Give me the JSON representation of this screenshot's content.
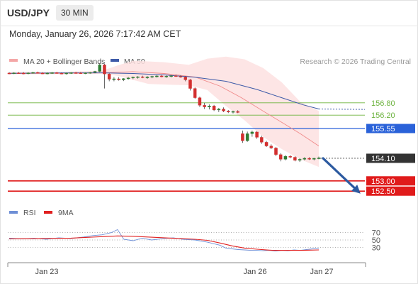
{
  "header": {
    "pair": "USD/JPY",
    "timeframe": "30 MIN",
    "datetime": "Monday, January 26, 2026 7:17:42 AM CET"
  },
  "legend": {
    "bb_label": "MA 20 + Bollinger Bands",
    "ma50_label": "MA 50",
    "credit": "Research © 2026 Trading Central"
  },
  "rsi_legend": {
    "rsi_label": "RSI",
    "ma_label": "9MA"
  },
  "colors": {
    "bb": "#f4a7a7",
    "ma50": "#3d5aa8",
    "rsi": "#6e8fd6",
    "rsi_ma": "#e02020",
    "bull": "#2e7d32",
    "bear": "#d32f2f",
    "support": "#e01b1b",
    "resistance": "#6db33f",
    "pivot": "#2a62d9",
    "current": "#333333",
    "arrow": "#2c5aa0"
  },
  "chart_data": [
    {
      "type": "candlestick",
      "title": "USD/JPY",
      "ylim": [
        152.3,
        158.35
      ],
      "x_ticks": [
        "Jan 23",
        "Jan 26",
        "Jan 27"
      ],
      "levels": [
        {
          "value": 156.8,
          "label": "156.80",
          "kind": "resistance"
        },
        {
          "value": 156.2,
          "label": "156.20",
          "kind": "resistance"
        },
        {
          "value": 155.55,
          "label": "155.55",
          "kind": "pivot"
        },
        {
          "value": 154.1,
          "label": "154.10",
          "kind": "current"
        },
        {
          "value": 153.0,
          "label": "153.00",
          "kind": "support"
        },
        {
          "value": 152.5,
          "label": "152.50",
          "kind": "support"
        }
      ],
      "projection": {
        "from": 154.1,
        "to": 152.5,
        "direction": "down"
      },
      "candles": [
        [
          158.25,
          158.29,
          158.2,
          158.24
        ],
        [
          158.24,
          158.29,
          158.2,
          158.26
        ],
        [
          158.26,
          158.3,
          158.21,
          158.25
        ],
        [
          158.25,
          158.3,
          158.19,
          158.23
        ],
        [
          158.23,
          158.29,
          158.19,
          158.26
        ],
        [
          158.26,
          158.31,
          158.22,
          158.28
        ],
        [
          158.28,
          158.32,
          158.23,
          158.25
        ],
        [
          158.25,
          158.29,
          158.2,
          158.23
        ],
        [
          158.23,
          158.28,
          158.19,
          158.25
        ],
        [
          158.25,
          158.3,
          158.21,
          158.27
        ],
        [
          158.27,
          158.31,
          158.22,
          158.24
        ],
        [
          158.24,
          158.28,
          158.19,
          158.22
        ],
        [
          158.22,
          158.27,
          158.18,
          158.25
        ],
        [
          158.25,
          158.29,
          158.21,
          158.27
        ],
        [
          158.27,
          158.31,
          158.22,
          158.26
        ],
        [
          158.26,
          158.3,
          158.21,
          158.24
        ],
        [
          158.24,
          158.28,
          158.2,
          158.26
        ],
        [
          158.26,
          158.3,
          158.22,
          158.28
        ],
        [
          158.28,
          158.36,
          158.24,
          158.33
        ],
        [
          158.33,
          158.72,
          158.3,
          158.65
        ],
        [
          158.65,
          158.7,
          157.5,
          158.2
        ],
        [
          158.2,
          158.24,
          157.85,
          157.95
        ],
        [
          157.95,
          158.05,
          157.85,
          157.97
        ],
        [
          157.97,
          158.05,
          157.88,
          157.92
        ],
        [
          157.92,
          158.0,
          157.86,
          157.98
        ],
        [
          157.98,
          158.06,
          157.93,
          158.01
        ],
        [
          158.01,
          158.08,
          157.95,
          158.05
        ],
        [
          158.05,
          158.1,
          157.98,
          158.07
        ],
        [
          158.07,
          158.12,
          158.0,
          158.03
        ],
        [
          158.03,
          158.1,
          157.97,
          158.06
        ],
        [
          158.06,
          158.12,
          158.0,
          158.09
        ],
        [
          158.09,
          158.15,
          158.03,
          158.11
        ],
        [
          158.11,
          158.16,
          158.04,
          158.08
        ],
        [
          158.08,
          158.13,
          158.02,
          158.1
        ],
        [
          158.1,
          158.15,
          158.04,
          158.12
        ],
        [
          158.12,
          158.17,
          158.06,
          158.09
        ],
        [
          158.09,
          158.14,
          158.02,
          158.06
        ],
        [
          158.06,
          158.1,
          157.85,
          157.92
        ],
        [
          157.92,
          157.96,
          157.4,
          157.5
        ],
        [
          157.5,
          157.55,
          157.0,
          157.05
        ],
        [
          157.05,
          157.1,
          156.6,
          156.68
        ],
        [
          156.68,
          156.8,
          156.5,
          156.6
        ],
        [
          156.6,
          156.72,
          156.48,
          156.65
        ],
        [
          156.65,
          156.7,
          156.4,
          156.45
        ],
        [
          156.45,
          156.55,
          156.35,
          156.5
        ],
        [
          156.5,
          156.58,
          156.35,
          156.4
        ],
        [
          156.4,
          156.45,
          156.3,
          156.35
        ],
        [
          156.35,
          156.42,
          156.28,
          156.38
        ],
        [
          156.38,
          156.44,
          156.3,
          156.33
        ],
        [
          155.3,
          155.45,
          154.85,
          154.95
        ],
        [
          154.95,
          155.4,
          154.9,
          155.3
        ],
        [
          155.3,
          155.45,
          155.15,
          155.38
        ],
        [
          155.38,
          155.42,
          155.05,
          155.12
        ],
        [
          155.12,
          155.2,
          154.8,
          154.88
        ],
        [
          154.88,
          154.95,
          154.65,
          154.7
        ],
        [
          154.7,
          154.78,
          154.55,
          154.6
        ],
        [
          154.6,
          154.65,
          154.2,
          154.28
        ],
        [
          154.28,
          154.35,
          153.95,
          154.05
        ],
        [
          154.05,
          154.25,
          154.0,
          154.2
        ],
        [
          154.2,
          154.25,
          154.1,
          154.15
        ],
        [
          154.15,
          154.2,
          153.95,
          154.0
        ],
        [
          154.0,
          154.1,
          153.92,
          154.05
        ],
        [
          154.05,
          154.15,
          154.0,
          154.1
        ],
        [
          154.1,
          154.15,
          154.02,
          154.05
        ],
        [
          154.05,
          154.12,
          154.0,
          154.1
        ],
        [
          154.1,
          154.18,
          154.05,
          154.12
        ]
      ],
      "ma20": [
        [
          0,
          158.23
        ],
        [
          0.15,
          158.24
        ],
        [
          0.3,
          158.26
        ],
        [
          0.4,
          158.32
        ],
        [
          0.5,
          158.23
        ],
        [
          0.6,
          158.06
        ],
        [
          0.68,
          157.62
        ],
        [
          0.75,
          157.05
        ],
        [
          0.82,
          156.4
        ],
        [
          0.88,
          155.85
        ],
        [
          0.94,
          155.3
        ],
        [
          1.0,
          154.7
        ]
      ],
      "bb_upper": [
        [
          0,
          158.3
        ],
        [
          0.15,
          158.31
        ],
        [
          0.3,
          158.36
        ],
        [
          0.35,
          158.62
        ],
        [
          0.4,
          158.85
        ],
        [
          0.5,
          158.78
        ],
        [
          0.58,
          158.65
        ],
        [
          0.64,
          158.95
        ],
        [
          0.7,
          159.05
        ],
        [
          0.76,
          158.92
        ],
        [
          0.82,
          158.5
        ],
        [
          0.88,
          157.8
        ],
        [
          0.94,
          156.85
        ],
        [
          1.0,
          156.4
        ]
      ],
      "bb_lower": [
        [
          0,
          158.18
        ],
        [
          0.15,
          158.19
        ],
        [
          0.3,
          158.21
        ],
        [
          0.35,
          158.12
        ],
        [
          0.45,
          157.72
        ],
        [
          0.52,
          157.68
        ],
        [
          0.58,
          157.66
        ],
        [
          0.64,
          157.42
        ],
        [
          0.7,
          156.65
        ],
        [
          0.76,
          155.95
        ],
        [
          0.82,
          155.15
        ],
        [
          0.88,
          154.55
        ],
        [
          0.94,
          154.05
        ],
        [
          1.0,
          153.68
        ]
      ],
      "ma50": [
        [
          0,
          158.24
        ],
        [
          0.1,
          158.25
        ],
        [
          0.2,
          158.26
        ],
        [
          0.3,
          158.26
        ],
        [
          0.4,
          158.23
        ],
        [
          0.5,
          158.16
        ],
        [
          0.6,
          158.05
        ],
        [
          0.7,
          157.85
        ],
        [
          0.8,
          157.45
        ],
        [
          0.88,
          157.05
        ],
        [
          0.95,
          156.7
        ],
        [
          1.0,
          156.5
        ]
      ],
      "ma50_projection": [
        156.5,
        156.48
      ]
    },
    {
      "type": "line",
      "title": "RSI",
      "ylim": [
        0,
        100
      ],
      "y_ticks": [
        70,
        50,
        30
      ],
      "series": [
        {
          "name": "RSI",
          "values": [
            [
              0,
              55
            ],
            [
              0.04,
              53
            ],
            [
              0.08,
              55
            ],
            [
              0.12,
              52
            ],
            [
              0.16,
              56
            ],
            [
              0.2,
              54
            ],
            [
              0.24,
              58
            ],
            [
              0.27,
              62
            ],
            [
              0.3,
              64
            ],
            [
              0.33,
              70
            ],
            [
              0.35,
              78
            ],
            [
              0.37,
              52
            ],
            [
              0.4,
              48
            ],
            [
              0.43,
              55
            ],
            [
              0.46,
              50
            ],
            [
              0.5,
              54
            ],
            [
              0.53,
              56
            ],
            [
              0.56,
              52
            ],
            [
              0.6,
              50
            ],
            [
              0.64,
              44
            ],
            [
              0.66,
              40
            ],
            [
              0.68,
              36
            ],
            [
              0.7,
              28
            ],
            [
              0.72,
              26
            ],
            [
              0.74,
              24
            ],
            [
              0.76,
              23
            ],
            [
              0.78,
              22
            ],
            [
              0.8,
              22
            ],
            [
              0.82,
              21
            ],
            [
              0.84,
              22
            ],
            [
              0.86,
              20
            ],
            [
              0.88,
              22
            ],
            [
              0.9,
              21
            ],
            [
              0.92,
              23
            ],
            [
              0.94,
              22
            ],
            [
              0.96,
              24
            ],
            [
              0.98,
              26
            ],
            [
              1.0,
              28
            ]
          ]
        },
        {
          "name": "9MA",
          "values": [
            [
              0,
              53
            ],
            [
              0.1,
              54
            ],
            [
              0.2,
              55
            ],
            [
              0.3,
              59
            ],
            [
              0.35,
              61
            ],
            [
              0.4,
              60
            ],
            [
              0.5,
              56
            ],
            [
              0.6,
              52
            ],
            [
              0.64,
              49
            ],
            [
              0.68,
              42
            ],
            [
              0.72,
              34
            ],
            [
              0.76,
              28
            ],
            [
              0.8,
              25
            ],
            [
              0.85,
              22
            ],
            [
              0.9,
              22
            ],
            [
              0.95,
              22
            ],
            [
              1.0,
              23
            ]
          ]
        }
      ]
    }
  ]
}
